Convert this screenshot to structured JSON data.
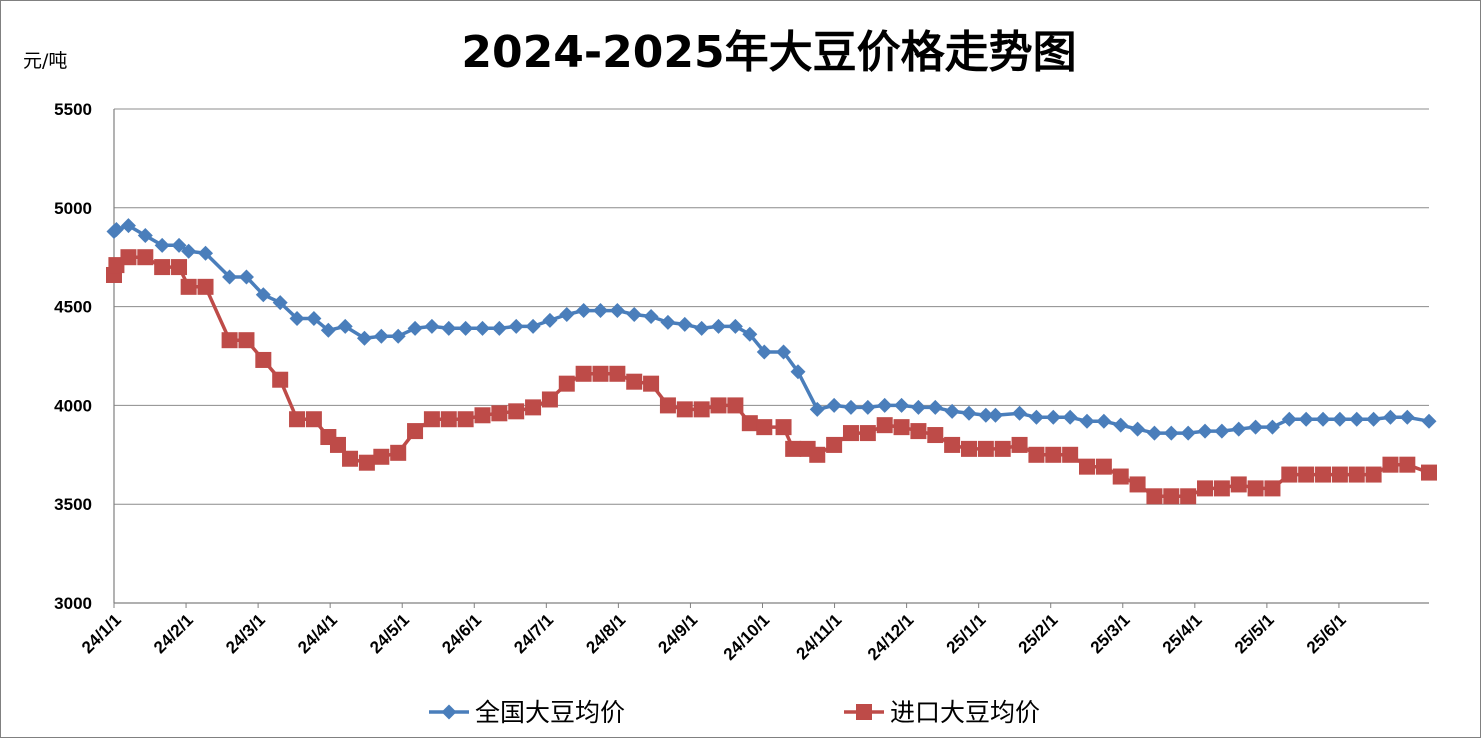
{
  "chart_data": {
    "type": "line",
    "title": "2024-2025年大豆价格走势图",
    "ylabel": "元/吨",
    "ylim": [
      3000,
      5500
    ],
    "yticks": [
      3000,
      3500,
      4000,
      4500,
      5000,
      5500
    ],
    "x_tick_labels": [
      "24/1/1",
      "24/2/1",
      "24/3/1",
      "24/4/1",
      "24/5/1",
      "24/6/1",
      "24/7/1",
      "24/8/1",
      "24/9/1",
      "24/10/1",
      "24/11/1",
      "24/12/1",
      "25/1/1",
      "25/2/1",
      "25/3/1",
      "25/4/1",
      "25/5/1",
      "25/6/1"
    ],
    "x_range_days": [
      0,
      546
    ],
    "grid": "horizontal",
    "legend_position": "bottom",
    "series": [
      {
        "name": "全国大豆均价",
        "color": "#4a7ebb",
        "marker": "diamond",
        "points": [
          [
            0,
            4880
          ],
          [
            1,
            4890
          ],
          [
            6,
            4910
          ],
          [
            13,
            4860
          ],
          [
            20,
            4810
          ],
          [
            27,
            4810
          ],
          [
            31,
            4780
          ],
          [
            38,
            4770
          ],
          [
            48,
            4650
          ],
          [
            55,
            4650
          ],
          [
            62,
            4560
          ],
          [
            69,
            4520
          ],
          [
            76,
            4440
          ],
          [
            83,
            4440
          ],
          [
            89,
            4380
          ],
          [
            96,
            4400
          ],
          [
            104,
            4340
          ],
          [
            111,
            4350
          ],
          [
            118,
            4350
          ],
          [
            125,
            4390
          ],
          [
            132,
            4400
          ],
          [
            139,
            4390
          ],
          [
            146,
            4390
          ],
          [
            153,
            4390
          ],
          [
            160,
            4390
          ],
          [
            167,
            4400
          ],
          [
            174,
            4400
          ],
          [
            181,
            4430
          ],
          [
            188,
            4460
          ],
          [
            195,
            4480
          ],
          [
            202,
            4480
          ],
          [
            209,
            4480
          ],
          [
            216,
            4460
          ],
          [
            223,
            4450
          ],
          [
            230,
            4420
          ],
          [
            237,
            4410
          ],
          [
            244,
            4390
          ],
          [
            251,
            4400
          ],
          [
            258,
            4400
          ],
          [
            264,
            4360
          ],
          [
            270,
            4270
          ],
          [
            278,
            4270
          ],
          [
            284,
            4170
          ],
          [
            292,
            3980
          ],
          [
            299,
            4000
          ],
          [
            306,
            3990
          ],
          [
            313,
            3990
          ],
          [
            320,
            4000
          ],
          [
            327,
            4000
          ],
          [
            334,
            3990
          ],
          [
            341,
            3990
          ],
          [
            348,
            3970
          ],
          [
            355,
            3960
          ],
          [
            362,
            3950
          ],
          [
            366,
            3950
          ],
          [
            376,
            3960
          ],
          [
            383,
            3940
          ],
          [
            390,
            3940
          ],
          [
            397,
            3940
          ],
          [
            404,
            3920
          ],
          [
            411,
            3920
          ],
          [
            418,
            3900
          ],
          [
            425,
            3880
          ],
          [
            432,
            3860
          ],
          [
            439,
            3860
          ],
          [
            446,
            3860
          ],
          [
            453,
            3870
          ],
          [
            460,
            3870
          ],
          [
            467,
            3880
          ],
          [
            474,
            3890
          ],
          [
            481,
            3890
          ],
          [
            488,
            3930
          ],
          [
            495,
            3930
          ],
          [
            502,
            3930
          ],
          [
            509,
            3930
          ],
          [
            516,
            3930
          ],
          [
            523,
            3930
          ],
          [
            530,
            3940
          ],
          [
            537,
            3940
          ],
          [
            546,
            3920
          ]
        ]
      },
      {
        "name": "进口大豆均价",
        "color": "#be4b48",
        "marker": "square",
        "points": [
          [
            0,
            4660
          ],
          [
            1,
            4710
          ],
          [
            6,
            4750
          ],
          [
            13,
            4750
          ],
          [
            20,
            4700
          ],
          [
            27,
            4700
          ],
          [
            31,
            4600
          ],
          [
            38,
            4600
          ],
          [
            48,
            4330
          ],
          [
            55,
            4330
          ],
          [
            62,
            4230
          ],
          [
            69,
            4130
          ],
          [
            76,
            3930
          ],
          [
            83,
            3930
          ],
          [
            89,
            3840
          ],
          [
            93,
            3800
          ],
          [
            98,
            3730
          ],
          [
            105,
            3710
          ],
          [
            111,
            3740
          ],
          [
            118,
            3760
          ],
          [
            125,
            3870
          ],
          [
            132,
            3930
          ],
          [
            139,
            3930
          ],
          [
            146,
            3930
          ],
          [
            153,
            3950
          ],
          [
            160,
            3960
          ],
          [
            167,
            3970
          ],
          [
            174,
            3990
          ],
          [
            181,
            4030
          ],
          [
            188,
            4110
          ],
          [
            195,
            4160
          ],
          [
            202,
            4160
          ],
          [
            209,
            4160
          ],
          [
            216,
            4120
          ],
          [
            223,
            4110
          ],
          [
            230,
            4000
          ],
          [
            237,
            3980
          ],
          [
            244,
            3980
          ],
          [
            251,
            4000
          ],
          [
            258,
            4000
          ],
          [
            264,
            3910
          ],
          [
            270,
            3890
          ],
          [
            278,
            3890
          ],
          [
            282,
            3780
          ],
          [
            288,
            3780
          ],
          [
            292,
            3750
          ],
          [
            299,
            3800
          ],
          [
            306,
            3860
          ],
          [
            313,
            3860
          ],
          [
            320,
            3900
          ],
          [
            327,
            3890
          ],
          [
            334,
            3870
          ],
          [
            341,
            3850
          ],
          [
            348,
            3800
          ],
          [
            355,
            3780
          ],
          [
            362,
            3780
          ],
          [
            369,
            3780
          ],
          [
            376,
            3800
          ],
          [
            383,
            3750
          ],
          [
            390,
            3750
          ],
          [
            397,
            3750
          ],
          [
            404,
            3690
          ],
          [
            411,
            3690
          ],
          [
            418,
            3640
          ],
          [
            425,
            3600
          ],
          [
            432,
            3540
          ],
          [
            439,
            3540
          ],
          [
            446,
            3540
          ],
          [
            453,
            3580
          ],
          [
            460,
            3580
          ],
          [
            467,
            3600
          ],
          [
            474,
            3580
          ],
          [
            481,
            3580
          ],
          [
            488,
            3650
          ],
          [
            495,
            3650
          ],
          [
            502,
            3650
          ],
          [
            509,
            3650
          ],
          [
            516,
            3650
          ],
          [
            523,
            3650
          ],
          [
            530,
            3700
          ],
          [
            537,
            3700
          ],
          [
            546,
            3660
          ]
        ]
      }
    ]
  }
}
